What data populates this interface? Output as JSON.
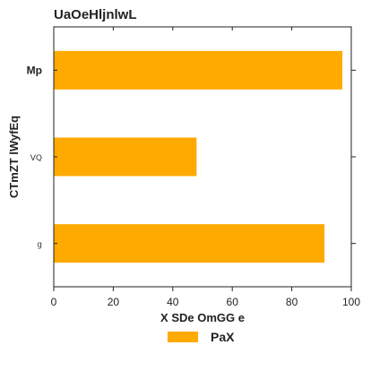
{
  "chart_data": {
    "type": "bar",
    "orientation": "horizontal",
    "title": "UaOeHljnlwL",
    "xlabel": "X SDe OmGG e",
    "ylabel": "CTmZT lWyfEq",
    "categories": [
      "Mp",
      "VQ",
      "g"
    ],
    "series": [
      {
        "name": "PaX",
        "values": [
          97,
          48,
          91
        ],
        "color": "#ffaa00"
      }
    ],
    "xlim": [
      0,
      100
    ],
    "xticks": [
      0,
      20,
      40,
      60,
      80,
      100
    ],
    "grid": false,
    "legend_position": "bottom-center"
  }
}
